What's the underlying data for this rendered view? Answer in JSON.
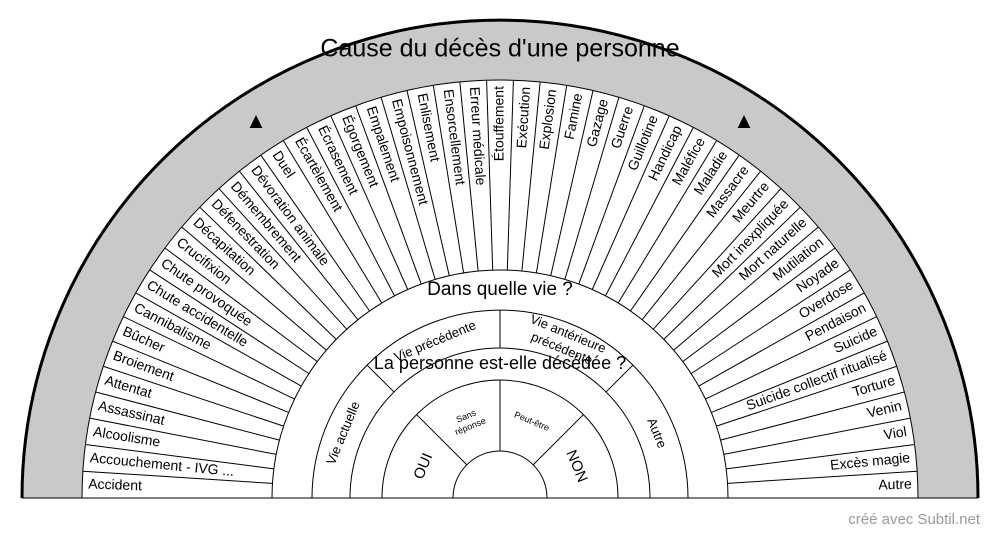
{
  "title": "Cause du décès d'une personne",
  "arrow_left": "▲",
  "arrow_right": "▲",
  "causes": [
    "Accident",
    "Accouchement - IVG ...",
    "Alcoolisme",
    "Assassinat",
    "Attentat",
    "Broiement",
    "Bûcher",
    "Cannibalisme",
    "Chute accidentelle",
    "Chute provoquée",
    "Crucifixion",
    "Décapitation",
    "Défenestration",
    "Démembrement",
    "Dévoration animale",
    "Duel",
    "Écartèlement",
    "Écrasement",
    "Égorgement",
    "Empalement",
    "Empoisonnement",
    "Enlisement",
    "Ensorcellement",
    "Erreur médicale",
    "Étouffement",
    "Exécution",
    "Explosion",
    "Famine",
    "Gazage",
    "Guerre",
    "Guillotine",
    "Handicap",
    "Maléfice",
    "Maladie",
    "Massacre",
    "Meurtre",
    "Mort inexpliquée",
    "Mort naturelle",
    "Mutilation",
    "Noyade",
    "Overdose",
    "Pendaison",
    "Suicide",
    "Suicide collectif ritualisé",
    "Torture",
    "Venin",
    "Viol",
    "Excès magie",
    "Autre"
  ],
  "life_title": "Dans quelle vie ?",
  "life_options": [
    [
      "Vie actuelle"
    ],
    [
      "Vie précédente"
    ],
    [
      "Vie antérieure",
      "précédente"
    ],
    [
      "Autre"
    ]
  ],
  "deceased_title": "La personne est-elle décédée ?",
  "deceased_options": [
    [
      "OUI"
    ],
    [
      "Sans",
      "réponse"
    ],
    [
      "Peut-être"
    ],
    [
      "NON"
    ]
  ],
  "footer": "créé avec Subtil.net"
}
